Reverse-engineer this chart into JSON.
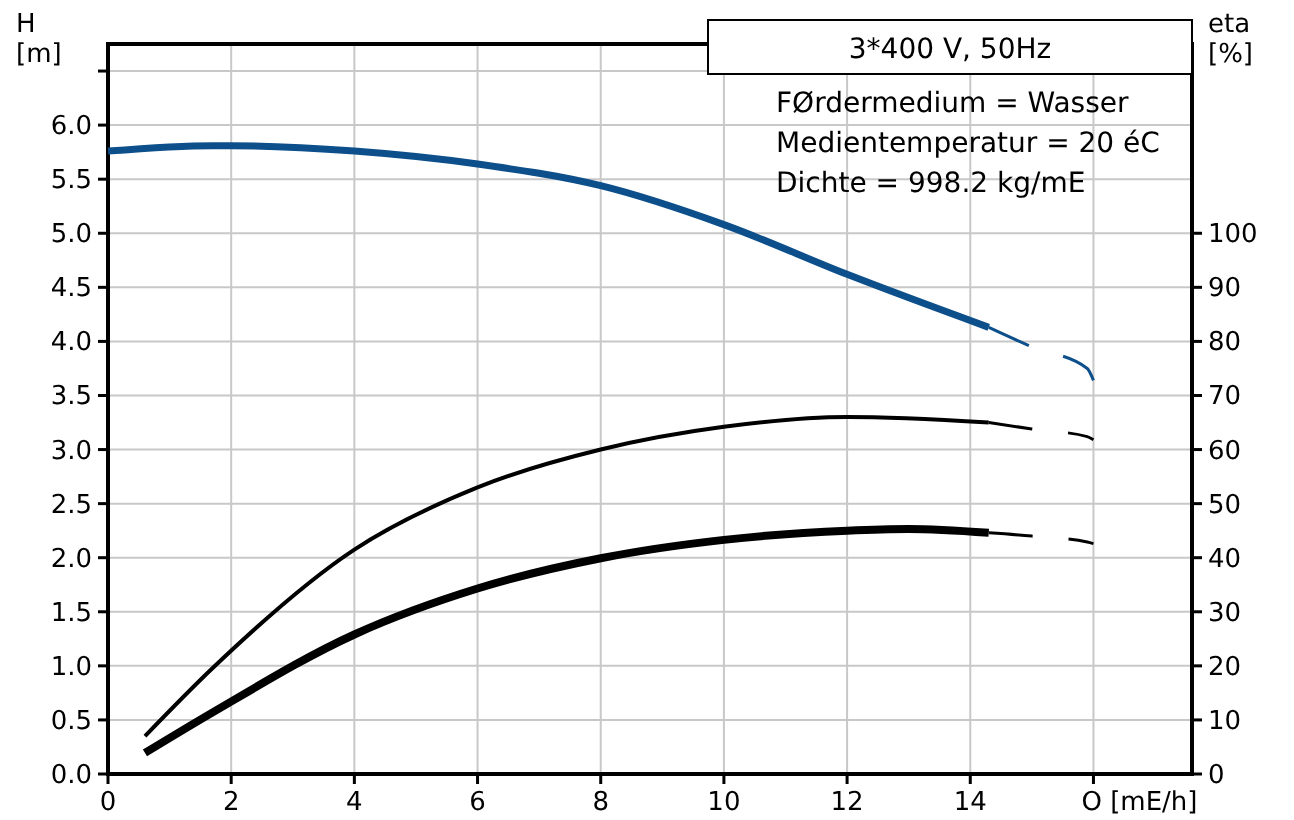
{
  "chart_data": {
    "type": "line",
    "title": "3*400 V, 50Hz",
    "xlabel": "O [mE/h]",
    "ylabel": "H\n[m]",
    "y2label": "eta\n[%]",
    "annotations": [
      "FØrdermedium = Wasser",
      "Medientemperatur = 20 éC",
      "Dichte = 998.2 kg/mE"
    ],
    "xlim": [
      0,
      17.6
    ],
    "xticks": [
      0,
      2,
      4,
      6,
      8,
      10,
      12,
      14,
      {
        "value": 16,
        "label": null
      }
    ],
    "ylim": [
      0,
      6.75
    ],
    "yticks": [
      {
        "value": 0,
        "label": "0.0"
      },
      0.5,
      {
        "value": 1,
        "label": "1.0"
      },
      1.5,
      {
        "value": 2,
        "label": "2.0"
      },
      2.5,
      {
        "value": 3,
        "label": "3.0"
      },
      3.5,
      {
        "value": 4,
        "label": "4.0"
      },
      4.5,
      {
        "value": 5,
        "label": "5.0"
      },
      5.5,
      {
        "value": 6,
        "label": "6.0"
      },
      {
        "value": 6.5,
        "label": null
      }
    ],
    "y2lim": [
      0,
      135
    ],
    "y2ticks": [
      0,
      10,
      20,
      30,
      40,
      50,
      60,
      70,
      80,
      90,
      100
    ],
    "grid": true,
    "line_style": "solid",
    "marker": "none",
    "series": [
      {
        "color": "#0d4f8b",
        "x": [
          0,
          1.7,
          2,
          4,
          6,
          8,
          10,
          12,
          14.3
        ],
        "values": [
          5.76,
          5.81,
          5.81,
          5.76,
          5.64,
          5.44,
          5.08,
          4.62,
          4.13
        ]
      },
      {
        "color": "#0d4f8b",
        "line_style": "dashed",
        "x": [
          14.3,
          15,
          15.9,
          16
        ],
        "values": [
          4.13,
          3.95,
          3.75,
          3.64
        ]
      },
      {
        "color": "#000000",
        "axis": "y2",
        "x": [
          0.6,
          1.7,
          4,
          6,
          8,
          10,
          12,
          14.3
        ],
        "values": [
          7,
          19.6,
          41.5,
          53,
          60,
          64.2,
          66,
          65
        ]
      },
      {
        "color": "#000000",
        "axis": "y2",
        "line_style": "dashed",
        "x": [
          14.3,
          15,
          15.9,
          16
        ],
        "values": [
          65,
          63.8,
          62.4,
          61.8
        ]
      },
      {
        "color": "#000000",
        "axis": "y2",
        "x": [
          0.6,
          1.7,
          4,
          6,
          8,
          10,
          12,
          13,
          14.3
        ],
        "values": [
          3.9,
          11.4,
          25.8,
          34.3,
          39.9,
          43.3,
          45,
          45.3,
          44.6
        ]
      },
      {
        "color": "#000000",
        "axis": "y2",
        "line_style": "dashed",
        "x": [
          14.3,
          15,
          15.9,
          16
        ],
        "values": [
          44.6,
          44,
          42.9,
          42.6
        ]
      }
    ]
  }
}
